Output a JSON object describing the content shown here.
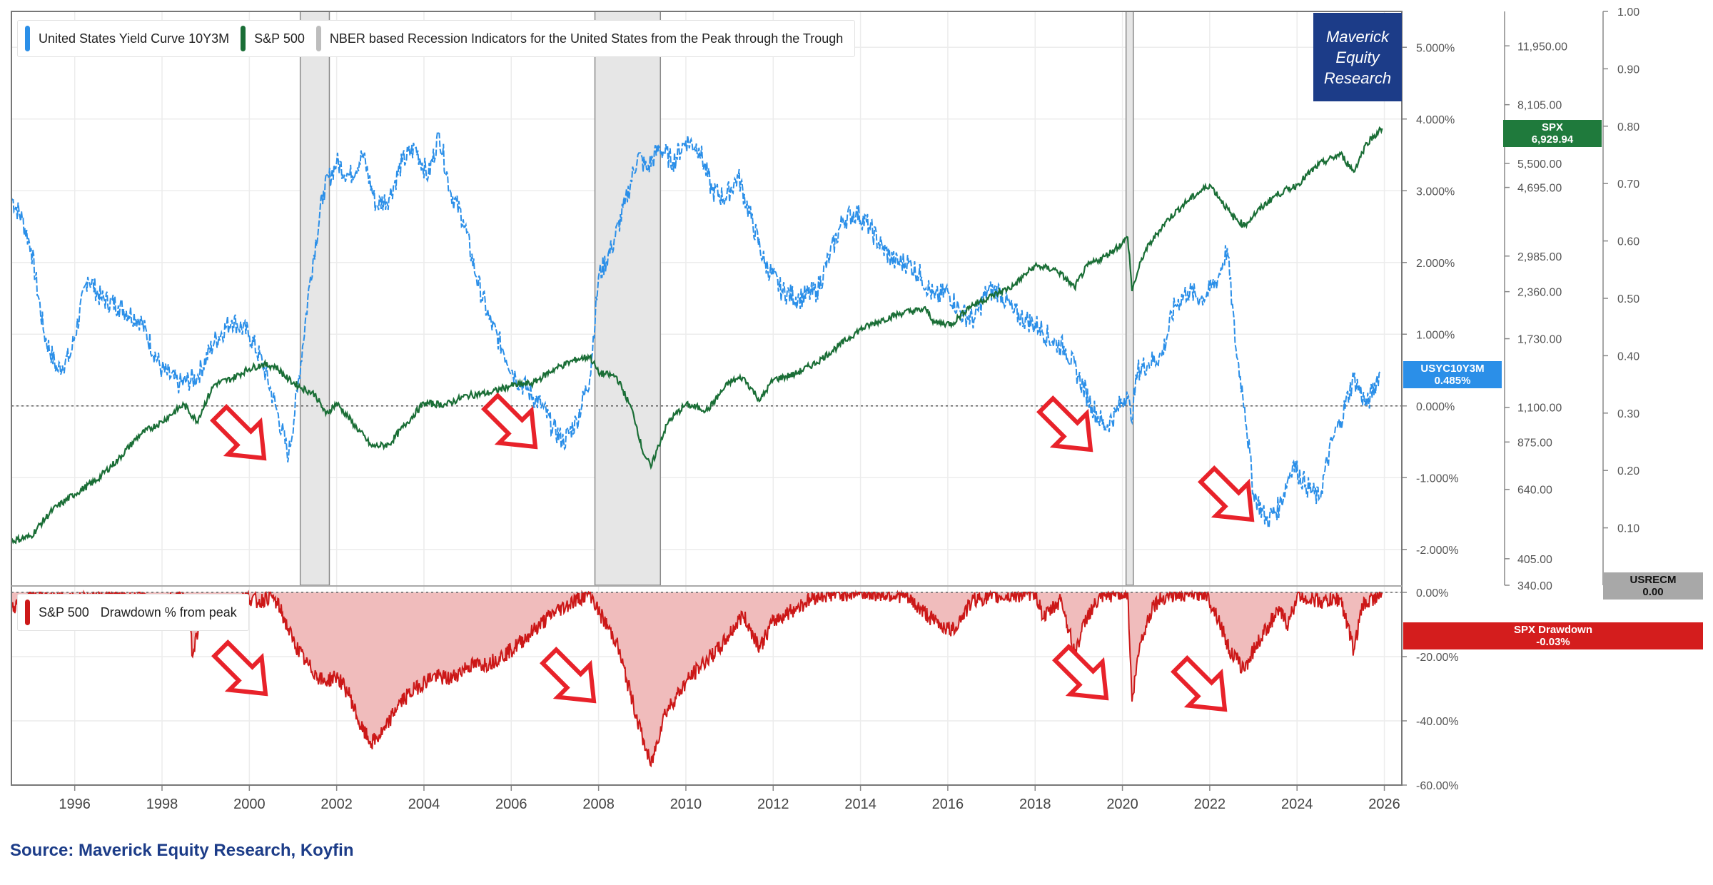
{
  "colors": {
    "yield": "#2b8fe8",
    "spx": "#1a6e36",
    "recession": "#bdbdbd",
    "drawdown": "#cc1818",
    "drawdown_fill": "#f0bcbc",
    "brand": "#1c3c88",
    "arrow": "#e8222a"
  },
  "legend_top": {
    "yield_label": "United States Yield Curve 10Y3M",
    "spx_label": "S&P 500",
    "recession_label": "NBER based Recession Indicators for the United States from the Peak through the Trough"
  },
  "legend_bottom": {
    "spx_label": "S&P 500",
    "metric_label": "Drawdown % from peak"
  },
  "brand": {
    "line1": "Maverick",
    "line2": "Equity",
    "line3": "Research"
  },
  "badges": {
    "spx": {
      "name": "SPX",
      "value": "6,929.94"
    },
    "yield": {
      "name": "USYC10Y3M",
      "value": "0.485%"
    },
    "recession": {
      "name": "USRECM",
      "value": "0.00"
    },
    "drawdown": {
      "name": "SPX Drawdown",
      "value": "-0.03%"
    }
  },
  "source": "Source: Maverick Equity Research, Koyfin",
  "chart_data": [
    {
      "type": "line",
      "panel": "top",
      "x_ticks": [
        "1996",
        "1998",
        "2000",
        "2002",
        "2004",
        "2006",
        "2008",
        "2010",
        "2012",
        "2014",
        "2016",
        "2018",
        "2020",
        "2022",
        "2024",
        "2026"
      ],
      "xlim": [
        1994.55,
        2026.4
      ],
      "series": [
        {
          "name": "United States Yield Curve 10Y3M",
          "axis": "yield",
          "x": [
            1994.55,
            1994.8,
            1995.0,
            1995.3,
            1995.6,
            1995.9,
            1996.3,
            1996.6,
            1997.0,
            1997.5,
            1998.0,
            1998.4,
            1998.8,
            1999.2,
            1999.6,
            2000.0,
            2000.3,
            2000.6,
            2000.9,
            2001.1,
            2001.4,
            2001.7,
            2002.0,
            2002.3,
            2002.6,
            2002.9,
            2003.2,
            2003.5,
            2003.8,
            2004.1,
            2004.35,
            2004.6,
            2004.9,
            2005.2,
            2005.5,
            2005.8,
            2006.1,
            2006.4,
            2006.7,
            2006.95,
            2007.2,
            2007.5,
            2007.8,
            2008.0,
            2008.3,
            2008.6,
            2008.9,
            2009.1,
            2009.4,
            2009.7,
            2010.0,
            2010.3,
            2010.6,
            2010.9,
            2011.2,
            2011.5,
            2011.8,
            2012.2,
            2012.6,
            2013.0,
            2013.3,
            2013.6,
            2013.9,
            2014.2,
            2014.5,
            2014.8,
            2015.1,
            2015.4,
            2015.7,
            2016.0,
            2016.3,
            2016.6,
            2016.9,
            2017.2,
            2017.5,
            2017.8,
            2018.1,
            2018.4,
            2018.7,
            2019.0,
            2019.3,
            2019.6,
            2019.85,
            2020.1,
            2020.2,
            2020.35,
            2020.6,
            2020.9,
            2021.2,
            2021.5,
            2021.8,
            2022.0,
            2022.2,
            2022.4,
            2022.6,
            2022.8,
            2023.0,
            2023.3,
            2023.6,
            2023.9,
            2024.2,
            2024.5,
            2024.8,
            2025.0,
            2025.3,
            2025.6,
            2025.9
          ],
          "y": [
            2.9,
            2.6,
            2.2,
            1.0,
            0.5,
            0.7,
            1.8,
            1.5,
            1.4,
            1.2,
            0.5,
            0.3,
            0.4,
            0.9,
            1.2,
            1.0,
            0.6,
            0.0,
            -0.7,
            0.2,
            1.8,
            3.0,
            3.4,
            3.2,
            3.5,
            2.8,
            2.9,
            3.4,
            3.6,
            3.2,
            3.8,
            3.0,
            2.6,
            1.8,
            1.2,
            0.8,
            0.4,
            0.2,
            0.0,
            -0.3,
            -0.5,
            -0.2,
            0.4,
            1.8,
            2.2,
            2.8,
            3.5,
            3.3,
            3.6,
            3.4,
            3.7,
            3.6,
            3.0,
            2.9,
            3.2,
            2.6,
            2.0,
            1.6,
            1.5,
            1.6,
            2.1,
            2.6,
            2.7,
            2.5,
            2.2,
            2.0,
            2.0,
            1.8,
            1.5,
            1.6,
            1.3,
            1.2,
            1.6,
            1.6,
            1.3,
            1.2,
            1.1,
            0.9,
            0.8,
            0.4,
            0.0,
            -0.3,
            -0.1,
            0.2,
            -0.2,
            0.5,
            0.6,
            0.7,
            1.4,
            1.6,
            1.5,
            1.6,
            1.8,
            2.2,
            0.8,
            0.0,
            -1.2,
            -1.6,
            -1.4,
            -0.8,
            -1.1,
            -1.3,
            -0.5,
            -0.2,
            0.4,
            0.0,
            0.485
          ]
        },
        {
          "name": "S&P 500",
          "axis": "spx",
          "x": [
            1994.55,
            1995.0,
            1995.5,
            1996.0,
            1996.5,
            1997.0,
            1997.5,
            1998.0,
            1998.5,
            1998.8,
            1999.2,
            1999.6,
            2000.0,
            2000.3,
            2000.6,
            2000.9,
            2001.2,
            2001.5,
            2001.75,
            2002.0,
            2002.4,
            2002.8,
            2003.2,
            2003.6,
            2004.0,
            2004.5,
            2005.0,
            2005.5,
            2006.0,
            2006.5,
            2007.0,
            2007.5,
            2007.8,
            2008.0,
            2008.4,
            2008.8,
            2009.0,
            2009.2,
            2009.6,
            2010.0,
            2010.5,
            2011.0,
            2011.3,
            2011.7,
            2012.0,
            2012.5,
            2013.0,
            2013.5,
            2014.0,
            2014.5,
            2015.0,
            2015.5,
            2015.7,
            2016.1,
            2016.5,
            2017.0,
            2017.5,
            2018.0,
            2018.5,
            2018.9,
            2019.2,
            2019.6,
            2020.0,
            2020.12,
            2020.22,
            2020.5,
            2021.0,
            2021.5,
            2022.0,
            2022.5,
            2022.8,
            2023.0,
            2023.5,
            2024.0,
            2024.5,
            2025.0,
            2025.3,
            2025.6,
            2025.95
          ],
          "y": [
            455,
            470,
            560,
            620,
            680,
            780,
            920,
            1000,
            1120,
            1000,
            1280,
            1330,
            1420,
            1460,
            1440,
            1320,
            1250,
            1200,
            1050,
            1130,
            980,
            850,
            860,
            990,
            1130,
            1120,
            1190,
            1210,
            1270,
            1290,
            1420,
            1510,
            1540,
            1380,
            1350,
            1050,
            830,
            740,
            1000,
            1120,
            1080,
            1300,
            1340,
            1150,
            1320,
            1370,
            1480,
            1650,
            1840,
            1960,
            2060,
            2100,
            1920,
            1910,
            2140,
            2290,
            2450,
            2800,
            2720,
            2420,
            2800,
            2980,
            3250,
            3380,
            2370,
            3050,
            3750,
            4300,
            4780,
            3900,
            3650,
            3900,
            4450,
            4770,
            5460,
            5850,
            5200,
            6300,
            6930
          ]
        },
        {
          "name": "NBER based Recession Indicators for the United States from the Peak through the Trough",
          "axis": "recession",
          "type": "area",
          "periods": [
            [
              "2001-03",
              "2001-11"
            ],
            [
              "2007-12",
              "2009-06"
            ],
            [
              "2020-02",
              "2020-04"
            ]
          ]
        }
      ],
      "axes": {
        "yield": {
          "ylim": [
            -2.5,
            5.5
          ],
          "ticks": [
            "5.000%",
            "4.000%",
            "3.000%",
            "2.000%",
            "1.000%",
            "0.000%",
            "-1.000%",
            "-2.000%"
          ]
        },
        "spx": {
          "ylim": [
            340,
            15000
          ],
          "log": true,
          "ticks": [
            "11,950.00",
            "8,105.00",
            "5,500.00",
            "4,695.00",
            "2,985.00",
            "2,360.00",
            "1,730.00",
            "1,100.00",
            "875.00",
            "640.00",
            "405.00",
            "340.00"
          ]
        },
        "recession": {
          "ylim": [
            0,
            1.0
          ],
          "ticks": [
            "1.00",
            "0.90",
            "0.80",
            "0.70",
            "0.60",
            "0.50",
            "0.40",
            "0.30",
            "0.20",
            "0.10",
            "0.00"
          ]
        }
      },
      "grid": true
    },
    {
      "type": "area",
      "panel": "bottom",
      "series": [
        {
          "name": "S&P 500",
          "x": [
            1994.55,
            1995.0,
            1996.0,
            1997.0,
            1997.6,
            1997.9,
            1998.3,
            1998.6,
            1998.7,
            1998.9,
            1999.3,
            1999.6,
            1999.9,
            2000.2,
            2000.5,
            2000.7,
            2001.0,
            2001.3,
            2001.7,
            2002.0,
            2002.3,
            2002.55,
            2002.8,
            2003.1,
            2003.4,
            2003.8,
            2004.2,
            2004.6,
            2005.0,
            2005.5,
            2006.0,
            2006.5,
            2007.0,
            2007.4,
            2007.8,
            2008.0,
            2008.4,
            2008.8,
            2009.0,
            2009.2,
            2009.5,
            2010.0,
            2010.4,
            2010.8,
            2011.3,
            2011.7,
            2012.0,
            2012.5,
            2013.0,
            2014.0,
            2015.0,
            2015.7,
            2016.1,
            2016.6,
            2017.5,
            2018.0,
            2018.2,
            2018.6,
            2018.9,
            2019.2,
            2019.5,
            2019.9,
            2020.12,
            2020.22,
            2020.4,
            2020.7,
            2021.0,
            2021.9,
            2022.2,
            2022.45,
            2022.78,
            2023.0,
            2023.4,
            2023.6,
            2023.8,
            2024.0,
            2024.6,
            2025.0,
            2025.3,
            2025.5,
            2025.95
          ],
          "y": [
            -5,
            -1,
            -2,
            -1,
            -2,
            -5,
            -1,
            -2,
            -20,
            -6,
            -2,
            -5,
            -1,
            -3,
            -1,
            -5,
            -15,
            -22,
            -28,
            -26,
            -32,
            -42,
            -47,
            -43,
            -35,
            -30,
            -26,
            -27,
            -23,
            -22,
            -18,
            -12,
            -6,
            -3,
            0,
            -6,
            -15,
            -35,
            -45,
            -54,
            -38,
            -28,
            -22,
            -17,
            -7,
            -17,
            -9,
            -5,
            -1,
            0,
            -1,
            -9,
            -12,
            -2,
            -1,
            0,
            -8,
            -2,
            -19,
            -7,
            -2,
            0,
            0,
            -34,
            -16,
            -4,
            -1,
            0,
            -8,
            -18,
            -24,
            -18,
            -9,
            -6,
            -10,
            -1,
            -3,
            -2,
            -18,
            -4,
            -0.03
          ]
        }
      ],
      "ylim": [
        -60,
        0
      ],
      "ticks": [
        "0.00%",
        "-20.00%",
        "-40.00%",
        "-60.00%"
      ],
      "grid": true
    }
  ]
}
